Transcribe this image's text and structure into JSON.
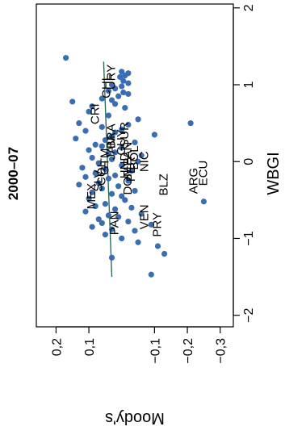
{
  "chart_data": {
    "type": "scatter",
    "title": "2000–07",
    "xlabel": "WBGI",
    "ylabel": "Moody's",
    "x_ticks": [
      "−2",
      "−1",
      "0",
      "1",
      "2"
    ],
    "y_ticks": [
      "0,2",
      "0,1",
      "−0,1",
      "−0,2",
      "−0,3"
    ],
    "xlim": [
      -2.15,
      2.05
    ],
    "ylim": [
      -0.34,
      0.26
    ],
    "colors": {
      "point": "#3a6eb2",
      "line": "#2e6b57",
      "axis": "#000000"
    },
    "trend_line": {
      "x": [
        -1.5,
        1.3
      ],
      "y": [
        0.03,
        0.055
      ]
    },
    "points": [
      {
        "x": 1.35,
        "y": 0.17
      },
      {
        "x": 1.17,
        "y": 0.0
      },
      {
        "x": 1.15,
        "y": -0.02
      },
      {
        "x": 1.12,
        "y": -0.01
      },
      {
        "x": 1.1,
        "y": 0.005
      },
      {
        "x": 1.05,
        "y": -0.005
      },
      {
        "x": 1.02,
        "y": -0.02
      },
      {
        "x": 1.0,
        "y": 0.03
      },
      {
        "x": 0.98,
        "y": 0.0
      },
      {
        "x": 0.95,
        "y": 0.02
      },
      {
        "x": 0.92,
        "y": 0.04
      },
      {
        "x": 0.9,
        "y": -0.005
      },
      {
        "x": 0.88,
        "y": -0.02
      },
      {
        "x": 0.85,
        "y": 0.01
      },
      {
        "x": 0.82,
        "y": 0.06
      },
      {
        "x": 0.8,
        "y": 0.03
      },
      {
        "x": 0.78,
        "y": 0.15
      },
      {
        "x": 0.75,
        "y": 0.02
      },
      {
        "x": 0.72,
        "y": 0.09
      },
      {
        "x": 0.7,
        "y": -0.01
      },
      {
        "x": 0.65,
        "y": 0.1
      },
      {
        "x": 0.6,
        "y": 0.04
      },
      {
        "x": 0.55,
        "y": -0.05
      },
      {
        "x": 0.5,
        "y": -0.21
      },
      {
        "x": 0.5,
        "y": 0.13
      },
      {
        "x": 0.48,
        "y": -0.02
      },
      {
        "x": 0.45,
        "y": 0.06
      },
      {
        "x": 0.42,
        "y": 0.0
      },
      {
        "x": 0.4,
        "y": 0.11
      },
      {
        "x": 0.38,
        "y": 0.02
      },
      {
        "x": 0.35,
        "y": -0.1
      },
      {
        "x": 0.33,
        "y": 0.03
      },
      {
        "x": 0.3,
        "y": 0.14
      },
      {
        "x": 0.28,
        "y": 0.05
      },
      {
        "x": 0.25,
        "y": -0.04
      },
      {
        "x": 0.22,
        "y": 0.08
      },
      {
        "x": 0.2,
        "y": 0.06
      },
      {
        "x": 0.18,
        "y": 0.0
      },
      {
        "x": 0.15,
        "y": 0.1
      },
      {
        "x": 0.12,
        "y": 0.02
      },
      {
        "x": 0.1,
        "y": 0.04
      },
      {
        "x": 0.08,
        "y": -0.06
      },
      {
        "x": 0.05,
        "y": 0.09
      },
      {
        "x": 0.03,
        "y": 0.03
      },
      {
        "x": 0.0,
        "y": -0.05
      },
      {
        "x": -0.02,
        "y": 0.07
      },
      {
        "x": -0.05,
        "y": 0.0
      },
      {
        "x": -0.08,
        "y": 0.12
      },
      {
        "x": -0.1,
        "y": 0.05
      },
      {
        "x": -0.12,
        "y": -0.03
      },
      {
        "x": -0.15,
        "y": 0.08
      },
      {
        "x": -0.18,
        "y": 0.02
      },
      {
        "x": -0.2,
        "y": 0.11
      },
      {
        "x": -0.22,
        "y": 0.04
      },
      {
        "x": -0.25,
        "y": -0.02
      },
      {
        "x": -0.28,
        "y": 0.07
      },
      {
        "x": -0.3,
        "y": 0.13
      },
      {
        "x": -0.32,
        "y": 0.01
      },
      {
        "x": -0.35,
        "y": 0.06
      },
      {
        "x": -0.38,
        "y": -0.04
      },
      {
        "x": -0.4,
        "y": 0.09
      },
      {
        "x": -0.42,
        "y": 0.03
      },
      {
        "x": -0.45,
        "y": 0.0
      },
      {
        "x": -0.48,
        "y": 0.1
      },
      {
        "x": -0.5,
        "y": -0.01
      },
      {
        "x": -0.52,
        "y": -0.25
      },
      {
        "x": -0.55,
        "y": 0.05
      },
      {
        "x": -0.58,
        "y": 0.08
      },
      {
        "x": -0.6,
        "y": -0.03
      },
      {
        "x": -0.62,
        "y": 0.02
      },
      {
        "x": -0.65,
        "y": 0.11
      },
      {
        "x": -0.68,
        "y": -0.06
      },
      {
        "x": -0.7,
        "y": 0.04
      },
      {
        "x": -0.72,
        "y": 0.01
      },
      {
        "x": -0.75,
        "y": 0.07
      },
      {
        "x": -0.78,
        "y": -0.02
      },
      {
        "x": -0.8,
        "y": 0.06
      },
      {
        "x": -0.82,
        "y": -0.09
      },
      {
        "x": -0.85,
        "y": 0.09
      },
      {
        "x": -0.88,
        "y": 0.03
      },
      {
        "x": -0.9,
        "y": -0.04
      },
      {
        "x": -0.95,
        "y": 0.05
      },
      {
        "x": -1.0,
        "y": 0.0
      },
      {
        "x": -1.05,
        "y": -0.05
      },
      {
        "x": -1.1,
        "y": -0.11
      },
      {
        "x": -1.2,
        "y": -0.13
      },
      {
        "x": -1.25,
        "y": 0.03
      },
      {
        "x": -1.47,
        "y": -0.09
      }
    ],
    "labels": [
      {
        "text": "CRI",
        "x": 0.62,
        "y": 0.07
      },
      {
        "text": "URY",
        "x": 1.1,
        "y": 0.02
      },
      {
        "text": "CHL",
        "x": 0.98,
        "y": 0.035
      },
      {
        "text": "BRA",
        "x": 0.33,
        "y": 0.02
      },
      {
        "text": "SUR",
        "x": 0.35,
        "y": -0.02
      },
      {
        "text": "MEX",
        "x": -0.45,
        "y": 0.08
      },
      {
        "text": "SLV",
        "x": -0.25,
        "y": 0.06
      },
      {
        "text": "COL",
        "x": -0.15,
        "y": 0.05
      },
      {
        "text": "GTM",
        "x": 0.0,
        "y": 0.04
      },
      {
        "text": "JAM",
        "x": 0.18,
        "y": 0.02
      },
      {
        "text": "PAN",
        "x": 0.1,
        "y": -0.03
      },
      {
        "text": "PER",
        "x": -0.1,
        "y": -0.04
      },
      {
        "text": "BOL",
        "x": 0.05,
        "y": -0.05
      },
      {
        "text": "DOM",
        "x": -0.25,
        "y": -0.03
      },
      {
        "text": "GUY",
        "x": 0.25,
        "y": -0.01
      },
      {
        "text": "HND",
        "x": -0.05,
        "y": -0.02
      },
      {
        "text": "NIC",
        "x": 0.0,
        "y": -0.08
      },
      {
        "text": "PAN",
        "x": -0.8,
        "y": 0.01
      },
      {
        "text": "VEN",
        "x": -0.72,
        "y": -0.08
      },
      {
        "text": "PRY",
        "x": -0.82,
        "y": -0.12
      },
      {
        "text": "BLZ",
        "x": -0.3,
        "y": -0.14
      },
      {
        "text": "ARG",
        "x": -0.25,
        "y": -0.23
      },
      {
        "text": "ECU",
        "x": -0.15,
        "y": -0.26
      }
    ]
  }
}
